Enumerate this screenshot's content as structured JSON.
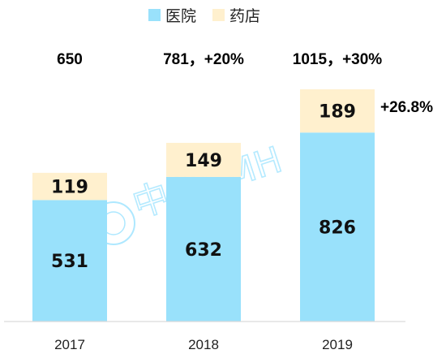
{
  "chart_data": {
    "type": "bar",
    "stacked": true,
    "categories": [
      "2017",
      "2018",
      "2019"
    ],
    "series": [
      {
        "name": "医院",
        "values": [
          531,
          632,
          826
        ],
        "color": "#99e1fb"
      },
      {
        "name": "药店",
        "values": [
          119,
          149,
          189
        ],
        "color": "#fff0ce"
      }
    ],
    "totals": [
      "650",
      "781，+20%",
      "1015，+30%"
    ],
    "pharmacy_growth_2019": "+26.8%",
    "ylim": [
      0,
      1015
    ],
    "grid": false,
    "legend_position": "top-center",
    "watermark": "中康CMH"
  }
}
